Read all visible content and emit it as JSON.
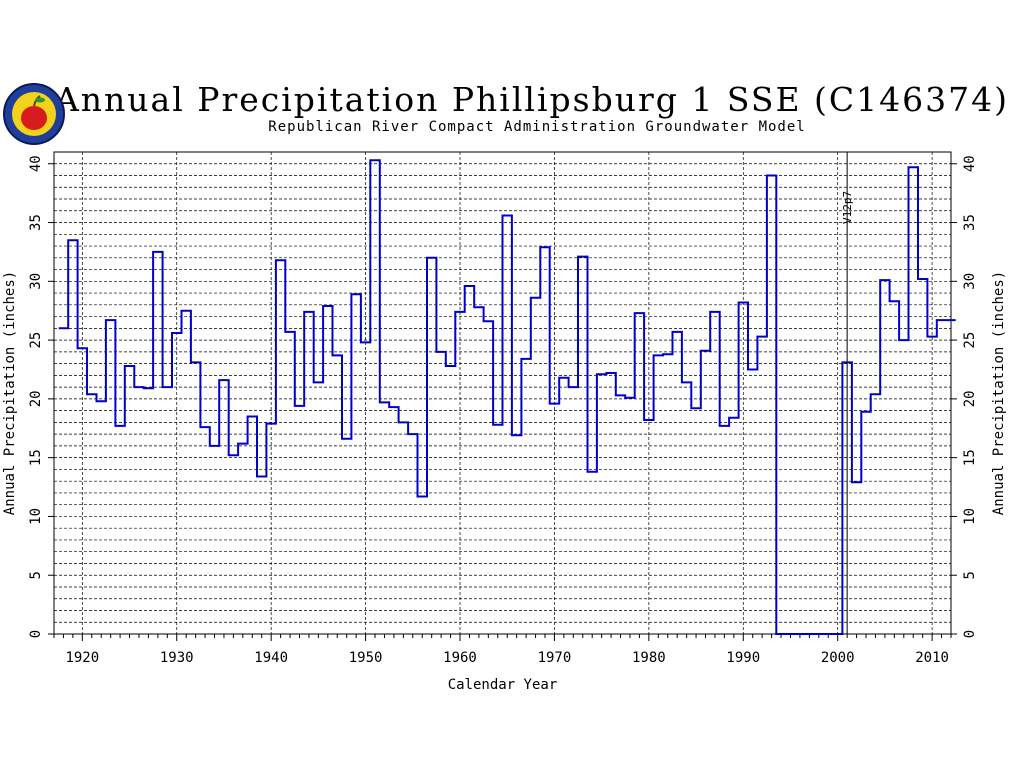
{
  "chart_data": {
    "type": "step-line",
    "title": "Annual Precipitation Phillipsburg 1 SSE (C146374)",
    "subtitle": "Republican River Compact Administration Groundwater Model",
    "xlabel": "Calendar Year",
    "ylabel": "Annual Precipitation (inches)",
    "xlim": [
      1917,
      2012
    ],
    "ylim": [
      0,
      41
    ],
    "x_ticks": [
      1920,
      1930,
      1940,
      1950,
      1960,
      1970,
      1980,
      1990,
      2000,
      2010
    ],
    "y_ticks": [
      0,
      5,
      10,
      15,
      20,
      25,
      30,
      35,
      40
    ],
    "grid": true,
    "annotation": {
      "label": "V12p7",
      "x": 2001
    },
    "series_color": "#0000cc",
    "series": [
      {
        "x": [
          1918,
          1919,
          1920,
          1921,
          1922,
          1923,
          1924,
          1925,
          1926,
          1927,
          1928,
          1929,
          1930,
          1931,
          1932,
          1933,
          1934,
          1935,
          1936,
          1937,
          1938,
          1939,
          1940,
          1941,
          1942,
          1943,
          1944,
          1945,
          1946,
          1947,
          1948,
          1949,
          1950,
          1951,
          1952,
          1953,
          1954,
          1955,
          1956,
          1957,
          1958,
          1959,
          1960,
          1961,
          1962,
          1963,
          1964,
          1965,
          1966,
          1967,
          1968,
          1969,
          1970,
          1971,
          1972,
          1973,
          1974,
          1975,
          1976,
          1977,
          1978,
          1979,
          1980,
          1981,
          1982,
          1983,
          1984,
          1985,
          1986,
          1987,
          1988,
          1989,
          1990,
          1991,
          1992,
          1993,
          1994,
          1995,
          1996,
          1997,
          1998,
          1999,
          2000,
          2001,
          2002,
          2003,
          2004,
          2005,
          2006,
          2007,
          2008,
          2009,
          2010,
          2011,
          2012
        ],
        "values": [
          26,
          33.5,
          24.3,
          20.4,
          19.8,
          26.7,
          17.7,
          22.8,
          21,
          20.9,
          32.5,
          21,
          25.6,
          27.5,
          23.1,
          17.6,
          16,
          21.6,
          15.2,
          16.2,
          18.5,
          13.4,
          17.9,
          31.8,
          25.7,
          19.4,
          27.4,
          21.4,
          27.9,
          23.7,
          16.6,
          28.9,
          24.8,
          40.3,
          19.7,
          19.3,
          18,
          17,
          11.7,
          32,
          24,
          22.8,
          27.4,
          29.6,
          27.8,
          26.6,
          17.8,
          35.6,
          16.9,
          23.4,
          28.6,
          32.9,
          19.6,
          21.8,
          21,
          32.1,
          13.8,
          22.1,
          22.2,
          20.3,
          20.1,
          27.3,
          18.2,
          23.7,
          23.8,
          25.7,
          21.4,
          19.2,
          24.1,
          27.4,
          17.7,
          18.4,
          28.2,
          22.5,
          25.3,
          39,
          0,
          0,
          0,
          0,
          0,
          0,
          0,
          23.1,
          12.9,
          18.9,
          20.4,
          30.1,
          28.3,
          25,
          39.7,
          30.2,
          25.3,
          26.7,
          26.7
        ]
      }
    ]
  }
}
